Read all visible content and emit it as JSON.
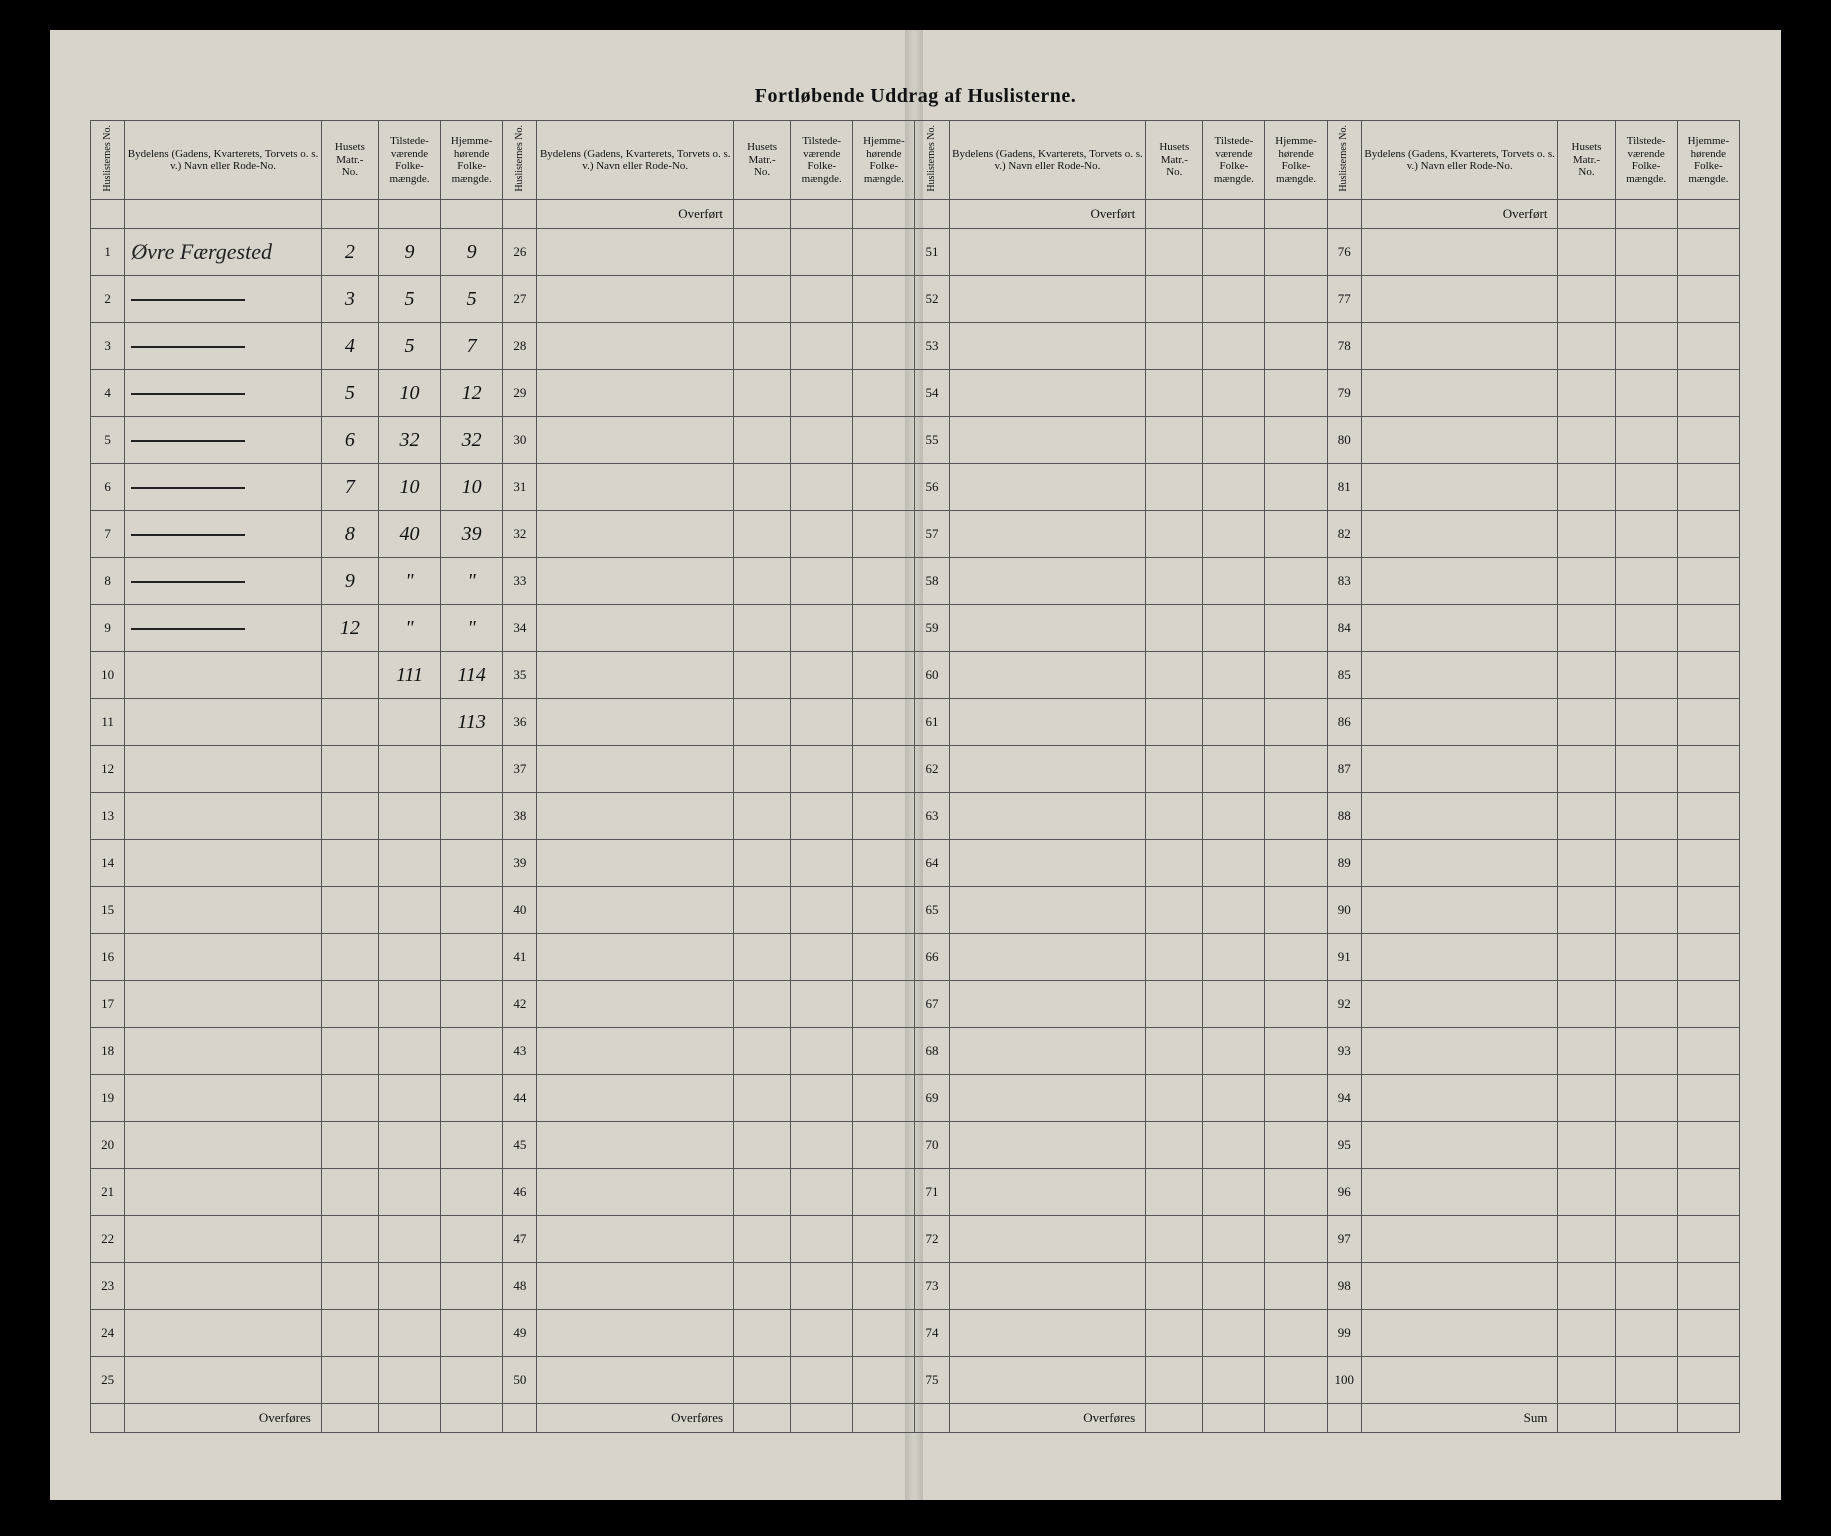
{
  "title": "Fortløbende Uddrag af Huslisterne.",
  "headers": {
    "huslisternes_no": "Huslisternes\nNo.",
    "bydelens": "Bydelens (Gadens, Kvarterets, Torvets o. s. v.) Navn eller Rode-No.",
    "husets_matr_no": "Husets\nMatr.-\nNo.",
    "tilstede": "Tilstede-\nværende\nFolke-\nmængde.",
    "hjemme": "Hjemme-\nhørende\nFolke-\nmængde."
  },
  "overfort": "Overført",
  "overfores": "Overføres",
  "sum": "Sum",
  "rows_per_section": 25,
  "sections": 4,
  "entries": {
    "1": {
      "bydel": "Øvre Færgested",
      "matr": "2",
      "tilst": "9",
      "hjem": "9"
    },
    "2": {
      "bydel": "—",
      "matr": "3",
      "tilst": "5",
      "hjem": "5"
    },
    "3": {
      "bydel": "—",
      "matr": "4",
      "tilst": "5",
      "hjem": "7"
    },
    "4": {
      "bydel": "—",
      "matr": "5",
      "tilst": "10",
      "hjem": "12"
    },
    "5": {
      "bydel": "—",
      "matr": "6",
      "tilst": "32",
      "hjem": "32"
    },
    "6": {
      "bydel": "—",
      "matr": "7",
      "tilst": "10",
      "hjem": "10"
    },
    "7": {
      "bydel": "—",
      "matr": "8",
      "tilst": "40",
      "hjem": "39"
    },
    "8": {
      "bydel": "—",
      "matr": "9",
      "tilst": "\"",
      "hjem": "\""
    },
    "9": {
      "bydel": "—",
      "matr": "12",
      "tilst": "\"",
      "hjem": "\""
    },
    "10": {
      "bydel": "",
      "matr": "",
      "tilst": "111",
      "hjem": "114"
    },
    "11": {
      "bydel": "",
      "matr": "",
      "tilst": "",
      "hjem": "113"
    }
  }
}
